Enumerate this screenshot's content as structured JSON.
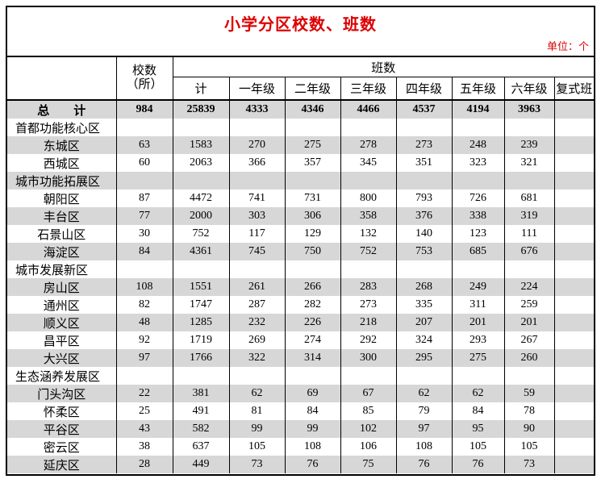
{
  "title": "小学分区校数、班数",
  "unit_label": "单位：个",
  "colors": {
    "accent_red": "#dd0000",
    "stripe_gray": "#d7d7d7",
    "border_black": "#000000"
  },
  "table": {
    "schools_header": {
      "line1": "校数",
      "line2": "（所）"
    },
    "classes_group_header": "班数",
    "sub_headers": [
      "计",
      "一年级",
      "二年级",
      "三年级",
      "四年级",
      "五年级",
      "六年级",
      "复式班"
    ],
    "rows": [
      {
        "label": "总　　计",
        "type": "total",
        "values": [
          "984",
          "25839",
          "4333",
          "4346",
          "4466",
          "4537",
          "4194",
          "3963",
          ""
        ]
      },
      {
        "label": "首都功能核心区",
        "type": "section",
        "values": [
          "",
          "",
          "",
          "",
          "",
          "",
          "",
          "",
          ""
        ]
      },
      {
        "label": "东城区",
        "type": "district",
        "values": [
          "63",
          "1583",
          "270",
          "275",
          "278",
          "273",
          "248",
          "239",
          ""
        ]
      },
      {
        "label": "西城区",
        "type": "district",
        "values": [
          "60",
          "2063",
          "366",
          "357",
          "345",
          "351",
          "323",
          "321",
          ""
        ]
      },
      {
        "label": "城市功能拓展区",
        "type": "section",
        "values": [
          "",
          "",
          "",
          "",
          "",
          "",
          "",
          "",
          ""
        ]
      },
      {
        "label": "朝阳区",
        "type": "district",
        "values": [
          "87",
          "4472",
          "741",
          "731",
          "800",
          "793",
          "726",
          "681",
          ""
        ]
      },
      {
        "label": "丰台区",
        "type": "district",
        "values": [
          "77",
          "2000",
          "303",
          "306",
          "358",
          "376",
          "338",
          "319",
          ""
        ]
      },
      {
        "label": "石景山区",
        "type": "district",
        "values": [
          "30",
          "752",
          "117",
          "129",
          "132",
          "140",
          "123",
          "111",
          ""
        ]
      },
      {
        "label": "海淀区",
        "type": "district",
        "values": [
          "84",
          "4361",
          "745",
          "750",
          "752",
          "753",
          "685",
          "676",
          ""
        ]
      },
      {
        "label": "城市发展新区",
        "type": "section",
        "values": [
          "",
          "",
          "",
          "",
          "",
          "",
          "",
          "",
          ""
        ]
      },
      {
        "label": "房山区",
        "type": "district",
        "values": [
          "108",
          "1551",
          "261",
          "266",
          "283",
          "268",
          "249",
          "224",
          ""
        ]
      },
      {
        "label": "通州区",
        "type": "district",
        "values": [
          "82",
          "1747",
          "287",
          "282",
          "273",
          "335",
          "311",
          "259",
          ""
        ]
      },
      {
        "label": "顺义区",
        "type": "district",
        "values": [
          "48",
          "1285",
          "232",
          "226",
          "218",
          "207",
          "201",
          "201",
          ""
        ]
      },
      {
        "label": "昌平区",
        "type": "district",
        "values": [
          "92",
          "1719",
          "269",
          "274",
          "292",
          "324",
          "293",
          "267",
          ""
        ]
      },
      {
        "label": "大兴区",
        "type": "district",
        "values": [
          "97",
          "1766",
          "322",
          "314",
          "300",
          "295",
          "275",
          "260",
          ""
        ]
      },
      {
        "label": "生态涵养发展区",
        "type": "section",
        "values": [
          "",
          "",
          "",
          "",
          "",
          "",
          "",
          "",
          ""
        ]
      },
      {
        "label": "门头沟区",
        "type": "district",
        "values": [
          "22",
          "381",
          "62",
          "69",
          "67",
          "62",
          "62",
          "59",
          ""
        ]
      },
      {
        "label": "怀柔区",
        "type": "district",
        "values": [
          "25",
          "491",
          "81",
          "84",
          "85",
          "79",
          "84",
          "78",
          ""
        ]
      },
      {
        "label": "平谷区",
        "type": "district",
        "values": [
          "43",
          "582",
          "99",
          "99",
          "102",
          "97",
          "95",
          "90",
          ""
        ]
      },
      {
        "label": "密云区",
        "type": "district",
        "values": [
          "38",
          "637",
          "105",
          "108",
          "106",
          "108",
          "105",
          "105",
          ""
        ]
      },
      {
        "label": "延庆区",
        "type": "district",
        "values": [
          "28",
          "449",
          "73",
          "76",
          "75",
          "76",
          "76",
          "73",
          ""
        ]
      }
    ]
  }
}
